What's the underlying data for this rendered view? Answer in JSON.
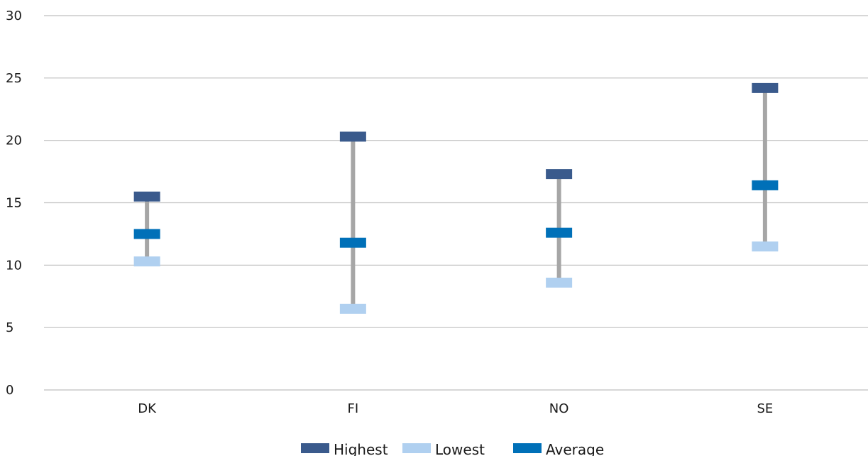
{
  "chart_data": {
    "type": "range",
    "categories": [
      "DK",
      "FI",
      "NO",
      "SE"
    ],
    "series": [
      {
        "name": "Highest",
        "values": [
          15.5,
          20.3,
          17.3,
          24.2
        ]
      },
      {
        "name": "Lowest",
        "values": [
          10.3,
          6.5,
          8.6,
          11.5
        ]
      },
      {
        "name": "Average",
        "values": [
          12.5,
          11.8,
          12.6,
          16.4
        ]
      }
    ],
    "ylim": [
      0,
      30
    ],
    "yticks": [
      0,
      5,
      10,
      15,
      20,
      25,
      30
    ],
    "grid": true,
    "legend_position": "bottom",
    "colors": {
      "Highest": "#3a5a8c",
      "Lowest": "#b0d0f0",
      "Average": "#0070b8",
      "range_line": "#a6a6a6",
      "gridline": "#bfbfbf"
    }
  }
}
